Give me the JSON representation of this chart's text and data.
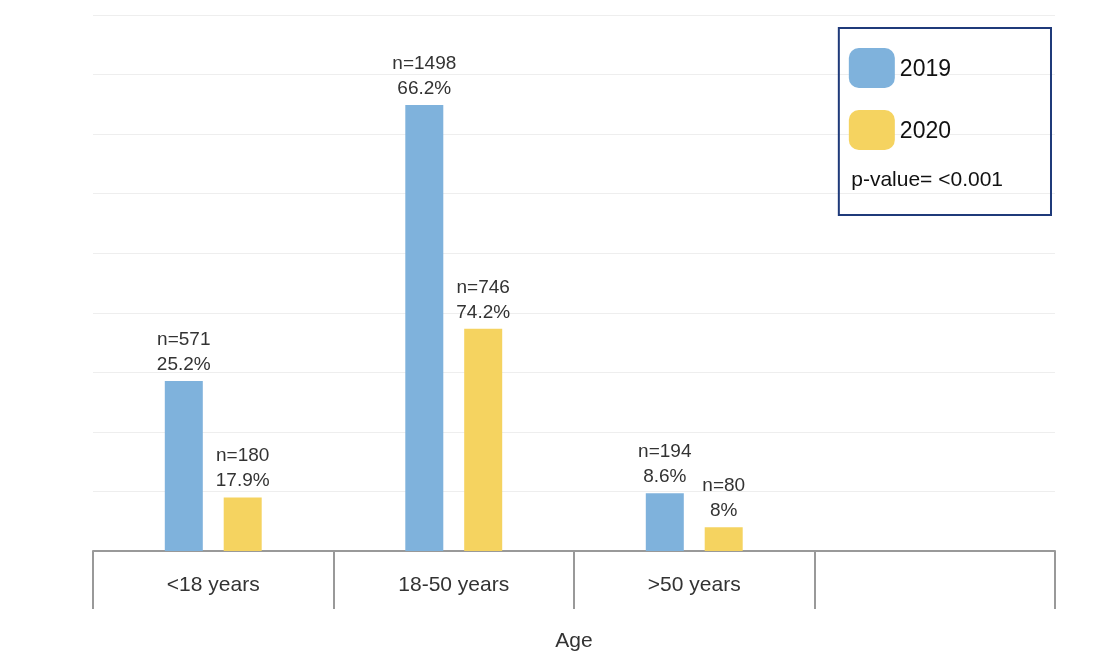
{
  "chart_data": {
    "type": "bar",
    "xlabel": "Age",
    "categories": [
      "<18 years",
      "18-50 years",
      ">50 years",
      null
    ],
    "series": [
      {
        "name": "2019",
        "color": "#7fb2dc",
        "values": [
          571,
          1498,
          194,
          null
        ],
        "value_labels": [
          "n=571\n25.2%",
          "n=1498\n66.2%",
          "n=194\n8.6%",
          null
        ]
      },
      {
        "name": "2020",
        "color": "#f5d360",
        "values": [
          180,
          746,
          80,
          null
        ],
        "value_labels": [
          "n=180\n17.9%",
          "n=746\n74.2%",
          "n=80\n8%",
          null
        ]
      }
    ],
    "ylim": [
      0,
      1800
    ],
    "yticks": [
      {
        "value": 0,
        "label": null
      },
      {
        "value": 200,
        "label": null
      },
      {
        "value": 400,
        "label": null
      },
      {
        "value": 600,
        "label": null
      },
      {
        "value": 800,
        "label": null
      },
      {
        "value": 1000,
        "label": null
      },
      {
        "value": 1200,
        "label": null
      },
      {
        "value": 1400,
        "label": null
      },
      {
        "value": 1600,
        "label": null
      },
      {
        "value": 1800,
        "label": null
      }
    ],
    "tick_labels": "x",
    "grid": "y",
    "legend": "top right",
    "annotations": [
      "p-value= <0.001"
    ]
  }
}
